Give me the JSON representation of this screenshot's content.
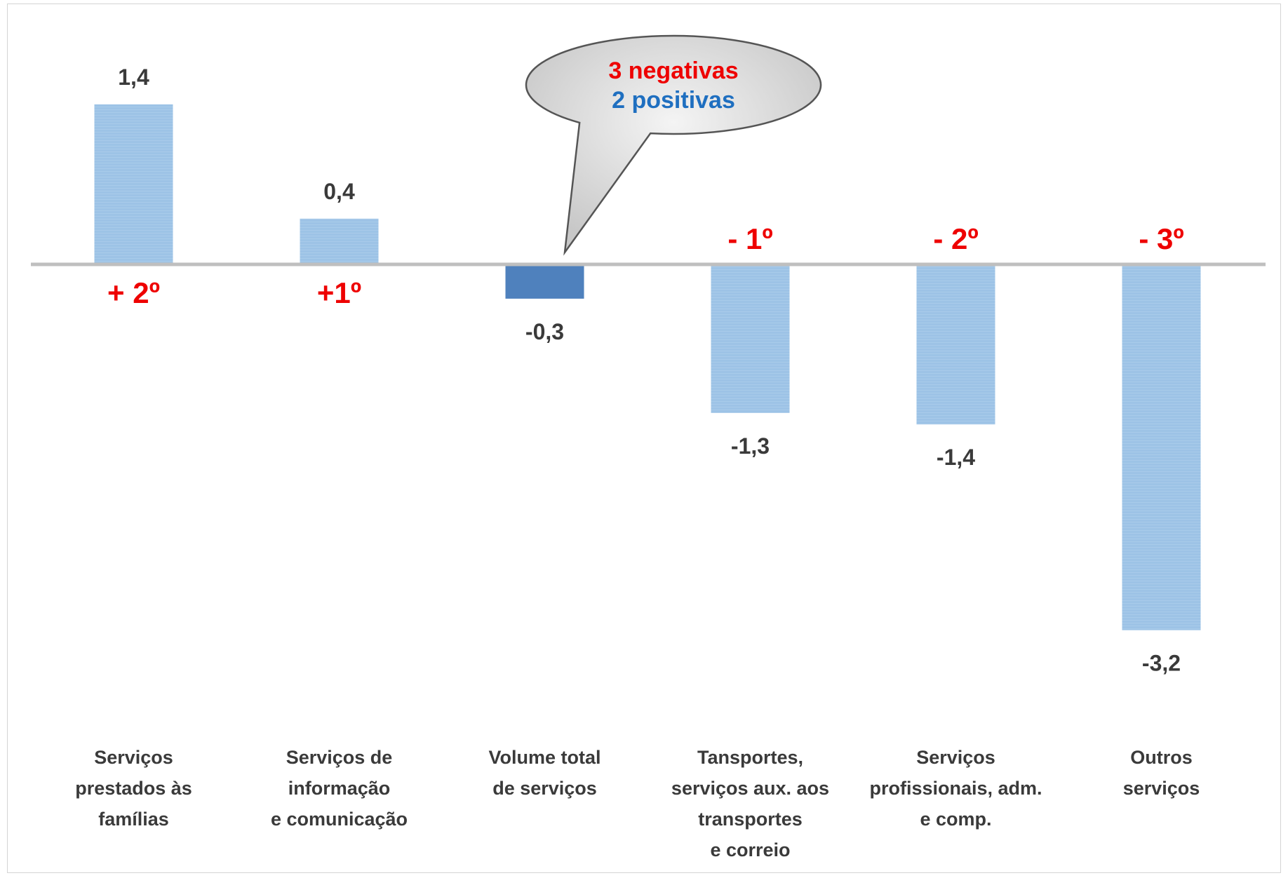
{
  "chart_data": {
    "type": "bar",
    "categories": [
      [
        "Serviços",
        "prestados às",
        "famílias"
      ],
      [
        "Serviços de",
        "informação",
        "e comunicação"
      ],
      [
        "Volume total",
        "de serviços"
      ],
      [
        "Tansportes,",
        "serviços aux. aos",
        "transportes",
        "e correio"
      ],
      [
        "Serviços",
        "profissionais, adm.",
        "e comp."
      ],
      [
        "Outros",
        "serviços"
      ]
    ],
    "values": [
      1.4,
      0.4,
      -0.3,
      -1.3,
      -1.4,
      -3.2
    ],
    "value_labels": [
      "1,4",
      "0,4",
      "-0,3",
      "-1,3",
      "-1,4",
      "-3,2"
    ],
    "rank_labels": [
      "+ 2º",
      "+1º",
      "",
      "- 1º",
      "- 2º",
      "- 3º"
    ],
    "highlight_index": 2,
    "colors": {
      "bar": "#9dc3e6",
      "bar_highlight": "#4f81bd",
      "axis": "#bfbfbf",
      "rank_text": "#ee0000",
      "value_text": "#3a3a3a"
    },
    "ylim": [
      -3.4,
      1.9
    ],
    "grid": false,
    "title": "",
    "xlabel": "",
    "ylabel": ""
  },
  "callout": {
    "line1": "3 negativas",
    "line2": "2 positivas",
    "line1_color": "#ee0000",
    "line2_color": "#1f6fc0"
  }
}
